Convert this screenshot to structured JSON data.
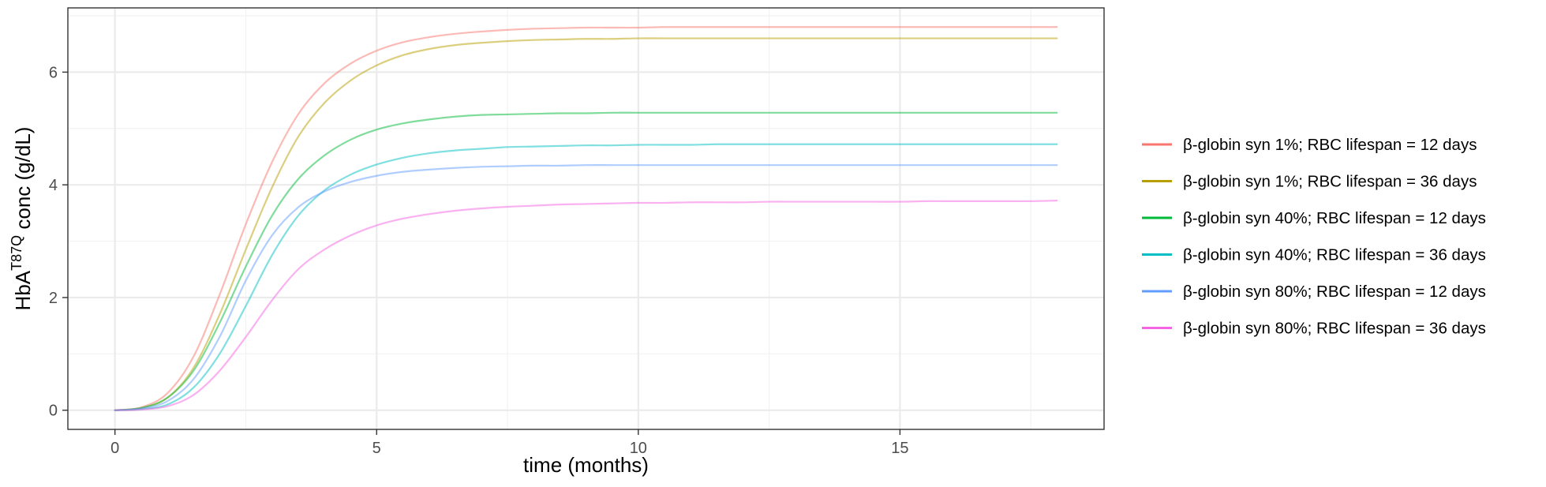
{
  "chart_data": {
    "type": "line",
    "xlabel": "time (months)",
    "ylabel": {
      "prefix": "HbA",
      "superscript": "T87Q",
      "suffix": " conc (g/dL)"
    },
    "xlim": [
      -0.9,
      18.9
    ],
    "ylim": [
      -0.34,
      7.14
    ],
    "x_ticks": [
      0,
      5,
      10,
      15
    ],
    "y_ticks": [
      0,
      2,
      4,
      6
    ],
    "x_minor_ticks": [
      2.5,
      7.5,
      12.5,
      17.5
    ],
    "y_minor_ticks": [
      1,
      3,
      5,
      7
    ],
    "grid": true,
    "legend_position": "right",
    "x": [
      0,
      0.5,
      1,
      1.5,
      2,
      2.5,
      3,
      3.5,
      4,
      4.5,
      5,
      5.5,
      6,
      6.5,
      7,
      7.5,
      8,
      8.5,
      9,
      9.5,
      10,
      10.5,
      11,
      11.5,
      12,
      12.5,
      13,
      13.5,
      14,
      14.5,
      15,
      15.5,
      16,
      16.5,
      17,
      17.5,
      18
    ],
    "series": [
      {
        "name": "β-globin syn 1%; RBC lifespan = 12 days",
        "color": "#F8766D",
        "values": [
          0,
          0.05,
          0.3,
          0.95,
          2.05,
          3.3,
          4.4,
          5.25,
          5.8,
          6.15,
          6.38,
          6.53,
          6.62,
          6.68,
          6.72,
          6.75,
          6.77,
          6.78,
          6.79,
          6.79,
          6.79,
          6.8,
          6.8,
          6.8,
          6.8,
          6.8,
          6.8,
          6.8,
          6.8,
          6.8,
          6.8,
          6.8,
          6.8,
          6.8,
          6.8,
          6.8,
          6.8
        ]
      },
      {
        "name": "β-globin syn 1%; RBC lifespan = 36 days",
        "color": "#B79F00",
        "values": [
          0,
          0.04,
          0.22,
          0.75,
          1.7,
          2.85,
          3.95,
          4.85,
          5.45,
          5.85,
          6.12,
          6.3,
          6.41,
          6.48,
          6.52,
          6.55,
          6.57,
          6.58,
          6.59,
          6.59,
          6.6,
          6.6,
          6.6,
          6.6,
          6.6,
          6.6,
          6.6,
          6.6,
          6.6,
          6.6,
          6.6,
          6.6,
          6.6,
          6.6,
          6.6,
          6.6,
          6.6
        ]
      },
      {
        "name": "β-globin syn 40%; RBC lifespan = 12 days",
        "color": "#00BA38",
        "values": [
          0,
          0.04,
          0.22,
          0.7,
          1.55,
          2.55,
          3.45,
          4.1,
          4.52,
          4.8,
          4.98,
          5.09,
          5.16,
          5.21,
          5.24,
          5.25,
          5.26,
          5.27,
          5.27,
          5.28,
          5.28,
          5.28,
          5.28,
          5.28,
          5.28,
          5.28,
          5.28,
          5.28,
          5.28,
          5.28,
          5.28,
          5.28,
          5.28,
          5.28,
          5.28,
          5.28,
          5.28
        ]
      },
      {
        "name": "β-globin syn 40%; RBC lifespan = 36 days",
        "color": "#00BFC4",
        "values": [
          0,
          0.02,
          0.1,
          0.4,
          1.0,
          1.85,
          2.75,
          3.45,
          3.9,
          4.18,
          4.36,
          4.48,
          4.56,
          4.61,
          4.64,
          4.67,
          4.68,
          4.69,
          4.7,
          4.7,
          4.71,
          4.71,
          4.71,
          4.72,
          4.72,
          4.72,
          4.72,
          4.72,
          4.72,
          4.72,
          4.72,
          4.72,
          4.72,
          4.72,
          4.72,
          4.72,
          4.72
        ]
      },
      {
        "name": "β-globin syn 80%; RBC lifespan = 12 days",
        "color": "#619CFF",
        "values": [
          0,
          0.03,
          0.16,
          0.55,
          1.3,
          2.3,
          3.1,
          3.6,
          3.88,
          4.05,
          4.16,
          4.23,
          4.27,
          4.3,
          4.32,
          4.33,
          4.34,
          4.34,
          4.35,
          4.35,
          4.35,
          4.35,
          4.35,
          4.35,
          4.35,
          4.35,
          4.35,
          4.35,
          4.35,
          4.35,
          4.35,
          4.35,
          4.35,
          4.35,
          4.35,
          4.35,
          4.35
        ]
      },
      {
        "name": "β-globin syn 80%; RBC lifespan = 36 days",
        "color": "#F564E3",
        "values": [
          0,
          0.01,
          0.07,
          0.27,
          0.7,
          1.3,
          1.95,
          2.5,
          2.85,
          3.1,
          3.28,
          3.4,
          3.48,
          3.54,
          3.58,
          3.61,
          3.63,
          3.65,
          3.66,
          3.67,
          3.68,
          3.68,
          3.69,
          3.69,
          3.69,
          3.7,
          3.7,
          3.7,
          3.7,
          3.7,
          3.7,
          3.71,
          3.71,
          3.71,
          3.71,
          3.71,
          3.72
        ]
      }
    ]
  }
}
